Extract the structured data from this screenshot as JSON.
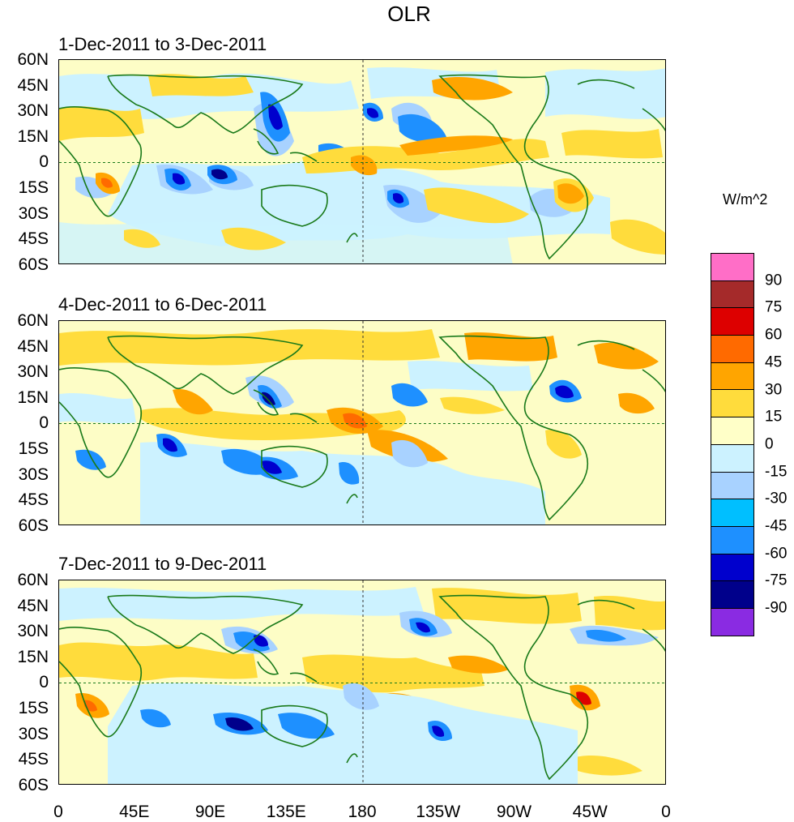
{
  "title": "OLR",
  "panels": [
    {
      "title": "1-Dec-2011 to 3-Dec-2011"
    },
    {
      "title": "4-Dec-2011 to 6-Dec-2011"
    },
    {
      "title": "7-Dec-2011 to 9-Dec-2011"
    }
  ],
  "lat_labels": [
    "60N",
    "45N",
    "30N",
    "15N",
    "0",
    "15S",
    "30S",
    "45S",
    "60S"
  ],
  "lon_labels": [
    "0",
    "45E",
    "90E",
    "135E",
    "180",
    "135W",
    "90W",
    "45W",
    "0"
  ],
  "colorbar": {
    "units": "W/m^2",
    "labels": [
      "90",
      "75",
      "60",
      "45",
      "30",
      "15",
      "0",
      "-15",
      "-30",
      "-45",
      "-60",
      "-75",
      "-90"
    ],
    "colors": [
      "#ff6ec7",
      "#a52a2a",
      "#dd0000",
      "#ff6a00",
      "#ffa500",
      "#ffdc3c",
      "#ffffc8",
      "#ccf2ff",
      "#a8d2ff",
      "#00bfff",
      "#1e90ff",
      "#0000cd",
      "#00008b",
      "#8a2be2"
    ]
  },
  "colors": {
    "coast": "#1a7a1a",
    "background_zero": "#fdfdc6"
  }
}
